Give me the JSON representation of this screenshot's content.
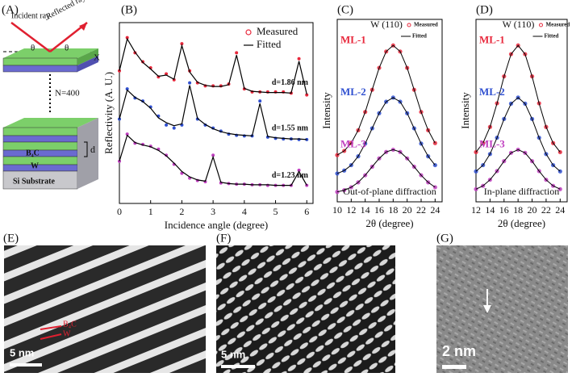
{
  "panels": {
    "A": {
      "panel_label": "(A)",
      "incident": "Incident ray",
      "reflected": "Reflected ray",
      "theta_left": "θ",
      "theta_right": "θ",
      "axis": "X",
      "repeat": "N=400",
      "layer_top": "B₄C",
      "layer_bottom": "W",
      "period": "d",
      "substrate": "Si Substrate"
    },
    "E": {
      "panel_label": "(E)",
      "layer_top": "B₄C",
      "layer_bottom": "W",
      "scale": "5 nm"
    },
    "F": {
      "panel_label": "(F)",
      "scale": "5 nm"
    },
    "G": {
      "panel_label": "(G)",
      "scale": "2 nm"
    }
  },
  "chart_data": [
    {
      "type": "line",
      "panel_label": "(B)",
      "x_label": "Incidence angle (degree)",
      "y_label": "Reflectivity (A. U.)",
      "legend": [
        "Measured",
        "Fitted"
      ],
      "legend_corner": "upper right",
      "x": [
        0,
        0.25,
        0.5,
        0.75,
        1,
        1.25,
        1.5,
        1.75,
        2,
        2.25,
        2.5,
        2.75,
        3,
        3.25,
        3.5,
        3.75,
        4,
        4.25,
        4.5,
        4.75,
        5,
        5.25,
        5.5,
        5.75,
        6
      ],
      "xlim": [
        0,
        6.2
      ],
      "xticks": [
        0,
        1,
        2,
        3,
        4,
        5,
        6
      ],
      "ylim": [
        0,
        30
      ],
      "curves": [
        {
          "annotation": "d=1.86 nm",
          "color": "#e8283c",
          "measured": [
            22,
            27.5,
            25,
            23.5,
            22.5,
            21,
            21.5,
            20.5,
            26.5,
            22,
            20,
            19.5,
            19.5,
            19.5,
            19.8,
            25,
            19,
            18.5,
            18.5,
            18.5,
            18.5,
            18.5,
            18.3,
            24,
            18
          ],
          "fitted": [
            22,
            27.3,
            25.1,
            23.4,
            22.3,
            21.1,
            21.3,
            20.6,
            26.2,
            21.8,
            20.1,
            19.6,
            19.4,
            19.4,
            19.7,
            24.6,
            19.1,
            18.6,
            18.5,
            18.4,
            18.4,
            18.4,
            18.3,
            23.6,
            18.1
          ]
        },
        {
          "annotation": "d=1.55 nm",
          "color": "#3050d0",
          "measured": [
            14,
            19,
            17.5,
            17,
            16,
            14.5,
            13,
            12.5,
            13,
            20,
            14,
            13,
            12.5,
            12,
            11.5,
            11.3,
            11.2,
            11.2,
            17,
            11,
            10.8,
            10.7,
            10.7,
            10.6,
            10.6
          ],
          "fitted": [
            14,
            18.8,
            17.6,
            16.9,
            15.8,
            14.2,
            13.4,
            12.9,
            13.2,
            19.6,
            14.1,
            13.1,
            12.4,
            11.9,
            11.6,
            11.4,
            11.3,
            11.2,
            16.6,
            11.1,
            10.9,
            10.8,
            10.7,
            10.7,
            10.6
          ]
        },
        {
          "annotation": "d=1.23 nm",
          "color": "#c040c0",
          "measured": [
            7,
            11.5,
            10,
            9.8,
            9.5,
            9,
            8,
            6.5,
            5,
            4.2,
            3.8,
            3.6,
            8,
            3.4,
            3.3,
            3.2,
            3.2,
            3.1,
            3.1,
            3,
            3,
            3,
            3,
            5.5,
            3
          ],
          "fitted": [
            7,
            11.3,
            10.1,
            9.7,
            9.4,
            8.8,
            7.9,
            6.7,
            5.3,
            4.4,
            3.9,
            3.7,
            7.7,
            3.5,
            3.3,
            3.2,
            3.2,
            3.1,
            3.1,
            3.1,
            3,
            3,
            3,
            5.3,
            3
          ]
        }
      ]
    },
    {
      "type": "line",
      "panel_label": "(C)",
      "x_label": "2θ (degree)",
      "y_label": "Intensity",
      "peak_label": "W (110)",
      "legend": [
        "Measured",
        "Fitted"
      ],
      "note": "Out-of-plane diffraction",
      "x": [
        10,
        11,
        12,
        13,
        14,
        15,
        16,
        17,
        18,
        19,
        20,
        21,
        22,
        23,
        24
      ],
      "xlim": [
        10,
        25
      ],
      "xticks": [
        10,
        12,
        14,
        16,
        18,
        20,
        22,
        24
      ],
      "ylim": [
        0,
        10.5
      ],
      "series": [
        {
          "name": "ML-1",
          "color": "#e8283c",
          "values": [
            2.69,
            2.93,
            3.38,
            4.12,
            5.17,
            6.45,
            7.71,
            8.65,
            9,
            8.65,
            7.71,
            6.45,
            5.17,
            4.12,
            3.38
          ]
        },
        {
          "name": "ML-2",
          "color": "#3050d0",
          "values": [
            1.63,
            1.8,
            2.11,
            2.62,
            3.35,
            4.23,
            5.1,
            5.76,
            6,
            5.76,
            5.1,
            4.23,
            3.35,
            2.62,
            2.11
          ]
        },
        {
          "name": "ML-3",
          "color": "#c040c0",
          "values": [
            0.57,
            0.67,
            0.84,
            1.12,
            1.53,
            2.02,
            2.5,
            2.87,
            3,
            2.87,
            2.5,
            2.02,
            1.53,
            1.12,
            0.84
          ]
        }
      ]
    },
    {
      "type": "line",
      "panel_label": "(D)",
      "x_label": "2θ (degree)",
      "y_label": "Intensity",
      "peak_label": "W (110)",
      "legend": [
        "Measured",
        "Fitted"
      ],
      "note": "In-plane diffraction",
      "x": [
        12,
        13,
        14,
        15,
        16,
        17,
        18,
        19,
        20,
        21,
        22,
        23,
        24
      ],
      "xlim": [
        12,
        25
      ],
      "xticks": [
        12,
        14,
        16,
        18,
        20,
        22,
        24
      ],
      "ylim": [
        0,
        10.5
      ],
      "series": [
        {
          "name": "ML-1",
          "color": "#e8283c",
          "values": [
            2.86,
            3.38,
            4.31,
            5.67,
            7.22,
            8.5,
            9,
            8.5,
            7.22,
            5.67,
            4.31,
            3.38,
            2.86
          ]
        },
        {
          "name": "ML-2",
          "color": "#3050d0",
          "values": [
            1.75,
            2.11,
            2.75,
            3.69,
            4.77,
            5.65,
            6,
            5.65,
            4.77,
            3.69,
            2.75,
            2.11,
            1.75
          ]
        },
        {
          "name": "ML-3",
          "color": "#c040c0",
          "values": [
            0.73,
            0.92,
            1.27,
            1.77,
            2.34,
            2.82,
            3,
            2.82,
            2.34,
            1.77,
            1.27,
            0.92,
            0.73
          ]
        }
      ]
    }
  ]
}
